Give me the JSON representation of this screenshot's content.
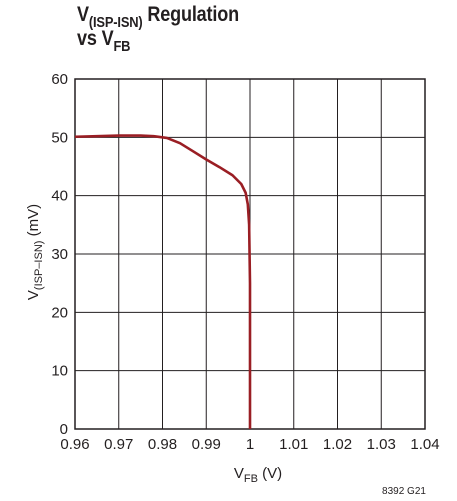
{
  "title": {
    "line1_main": "V",
    "line1_sub": "(ISP-ISN)",
    "line1_rest": " Regulation",
    "line2_main": "vs V",
    "line2_sub": "FB"
  },
  "figure_id": "8392 G21",
  "colors": {
    "curve": "#9a1e24",
    "grid": "#231f20",
    "text": "#231f20"
  },
  "chart_data": {
    "type": "line",
    "title": "V(ISP-ISN) Regulation vs VFB",
    "xlabel_main": "V",
    "xlabel_sub": "FB",
    "xlabel_unit": " (V)",
    "ylabel_main": "V",
    "ylabel_sub": "(ISP–ISN)",
    "ylabel_unit": " (mV)",
    "xlim": [
      0.96,
      1.04
    ],
    "ylim": [
      0,
      60
    ],
    "xticks": [
      0.96,
      0.97,
      0.98,
      0.99,
      1,
      1.01,
      1.02,
      1.03,
      1.04
    ],
    "xtick_labels": [
      "0.96",
      "0.97",
      "0.98",
      "0.99",
      "1",
      "1.01",
      "1.02",
      "1.03",
      "1.04"
    ],
    "yticks": [
      0,
      10,
      20,
      30,
      40,
      50,
      60
    ],
    "ytick_labels": [
      "0",
      "10",
      "20",
      "30",
      "40",
      "50",
      "60"
    ],
    "grid": true,
    "series": [
      {
        "x": [
          0.96,
          0.965,
          0.97,
          0.975,
          0.978,
          0.981,
          0.984,
          0.987,
          0.99,
          0.993,
          0.996,
          0.998,
          0.999,
          0.9995,
          0.9998,
          1.0,
          1.0
        ],
        "y": [
          50.1,
          50.2,
          50.3,
          50.3,
          50.2,
          49.9,
          49.0,
          47.6,
          46.2,
          44.9,
          43.5,
          42.0,
          40.5,
          38.5,
          35.0,
          25.0,
          0
        ]
      }
    ]
  }
}
